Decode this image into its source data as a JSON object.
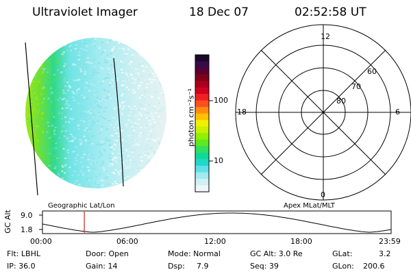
{
  "header": {
    "instrument": "Ultraviolet Imager",
    "date": "18 Dec 07",
    "time": "02:52:58 UT"
  },
  "colorbar": {
    "label": "photon cm⁻²s⁻¹",
    "ticks": [
      "100",
      "10"
    ],
    "colors": [
      "#1a0a2a",
      "#3a0a4a",
      "#5a0030",
      "#800018",
      "#a8001a",
      "#d00020",
      "#f02020",
      "#ff5020",
      "#ff8c10",
      "#ffc000",
      "#f0f000",
      "#c8f000",
      "#90f000",
      "#60e820",
      "#30e060",
      "#10d898",
      "#20d8c8",
      "#60e0e8",
      "#a0eaf0",
      "#d0f0f4",
      "#f0f6f8"
    ]
  },
  "polar": {
    "mlt_labels": [
      "12",
      "18",
      "6",
      "0"
    ],
    "lat_labels": [
      "60",
      "70",
      "80"
    ]
  },
  "timeline": {
    "left_title": "Geographic Lat/Lon",
    "right_title": "Apex MLat/MLT",
    "axis_name": "GC Alt",
    "y_ticks": [
      "9.0",
      "1.8"
    ],
    "x_ticks": [
      "00:00",
      "06:00",
      "12:00",
      "18:00",
      "23:59"
    ],
    "current_marker_hour": 2.88
  },
  "info": {
    "flt": "Flt: LBHL",
    "ip": "IP: 36.0",
    "door": "Door: Open",
    "gain": "Gain: 14",
    "mode": "Mode: Normal",
    "dsp_label": "Dsp:",
    "dsp_value": "7.9",
    "gcalt": "GC Alt: 3.0 Re",
    "seq": "Seq: 39",
    "glat_label": "GLat:",
    "glat_value": "3.2",
    "glon_label": "GLon:",
    "glon_value": "200.6"
  }
}
